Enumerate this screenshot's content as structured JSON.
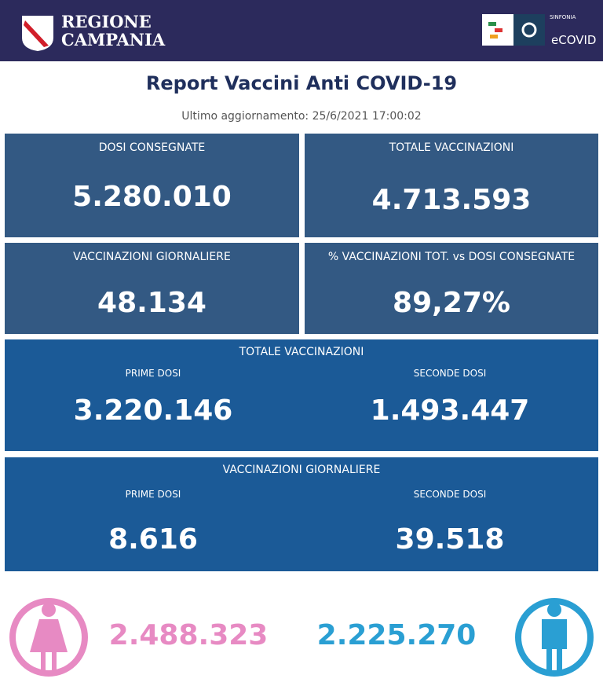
{
  "header": {
    "region": [
      "REGIONE",
      "CAMPANIA"
    ],
    "brand_small": "SINFONIA",
    "brand": "eCOVID"
  },
  "title": "Report Vaccini Anti COVID-19",
  "updated": "Ultimo aggiornamento: 25/6/2021 17:00:02",
  "cards": [
    {
      "label": "DOSI  CONSEGNATE",
      "value": "5.280.010"
    },
    {
      "label": "TOTALE VACCINAZIONI",
      "value": "4.713.593"
    },
    {
      "label": "VACCINAZIONI GIORNALIERE",
      "value": "48.134"
    },
    {
      "label": "% VACCINAZIONI TOT. vs DOSI CONSEGNATE",
      "value": "89,27%"
    }
  ],
  "sections": [
    {
      "title": "TOTALE VACCINAZIONI",
      "items": [
        {
          "label": "PRIME DOSI",
          "value": "3.220.146"
        },
        {
          "label": "SECONDE DOSI",
          "value": "1.493.447"
        }
      ]
    },
    {
      "title": "VACCINAZIONI GIORNALIERE",
      "items": [
        {
          "label": "PRIME DOSI",
          "value": "8.616"
        },
        {
          "label": "SECONDE DOSI",
          "value": "39.518"
        }
      ]
    }
  ],
  "gender": {
    "female": "2.488.323",
    "male": "2.225.270"
  }
}
